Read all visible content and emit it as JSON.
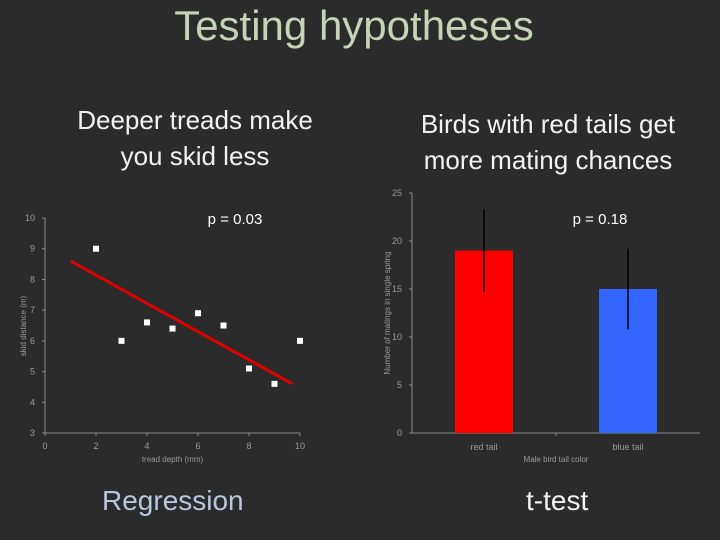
{
  "slide": {
    "title": "Testing hypotheses",
    "left_heading": "Deeper treads make you skid less",
    "right_heading": "Birds with red tails get more mating chances",
    "left_caption": "Regression",
    "right_caption": "t-test"
  },
  "chart_data": [
    {
      "type": "scatter",
      "title": "",
      "annotation": "p = 0.03",
      "xlabel": "tread depth (mm)",
      "ylabel": "skid distance (m)",
      "xlim": [
        0,
        10
      ],
      "ylim": [
        3,
        10
      ],
      "xticks": [
        0,
        2,
        4,
        6,
        8,
        10
      ],
      "yticks": [
        3,
        4,
        5,
        6,
        7,
        8,
        9,
        10
      ],
      "points": [
        {
          "x": 2,
          "y": 9
        },
        {
          "x": 3,
          "y": 6
        },
        {
          "x": 4,
          "y": 6.6
        },
        {
          "x": 5,
          "y": 6.4
        },
        {
          "x": 6,
          "y": 6.9
        },
        {
          "x": 7,
          "y": 6.5
        },
        {
          "x": 8,
          "y": 5.1
        },
        {
          "x": 9,
          "y": 4.6
        },
        {
          "x": 10,
          "y": 6
        }
      ],
      "trendline": {
        "x": [
          1,
          9.7
        ],
        "y": [
          8.6,
          4.6
        ],
        "color": "#e00000"
      },
      "marker_color": "#ffffff",
      "grid": false
    },
    {
      "type": "bar",
      "title": "",
      "annotation": "p = 0.18",
      "xlabel": "Male bird tail color",
      "ylabel": "Number of matings in single spring",
      "categories": [
        "red tail",
        "blue tail"
      ],
      "values": [
        19,
        15
      ],
      "error_upper": [
        23.3,
        19.2
      ],
      "error_lower": [
        14.7,
        10.8
      ],
      "colors": [
        "#ff0000",
        "#3366ff"
      ],
      "ylim": [
        0,
        25
      ],
      "yticks": [
        0,
        5,
        10,
        15,
        20,
        25
      ],
      "grid": false
    }
  ]
}
